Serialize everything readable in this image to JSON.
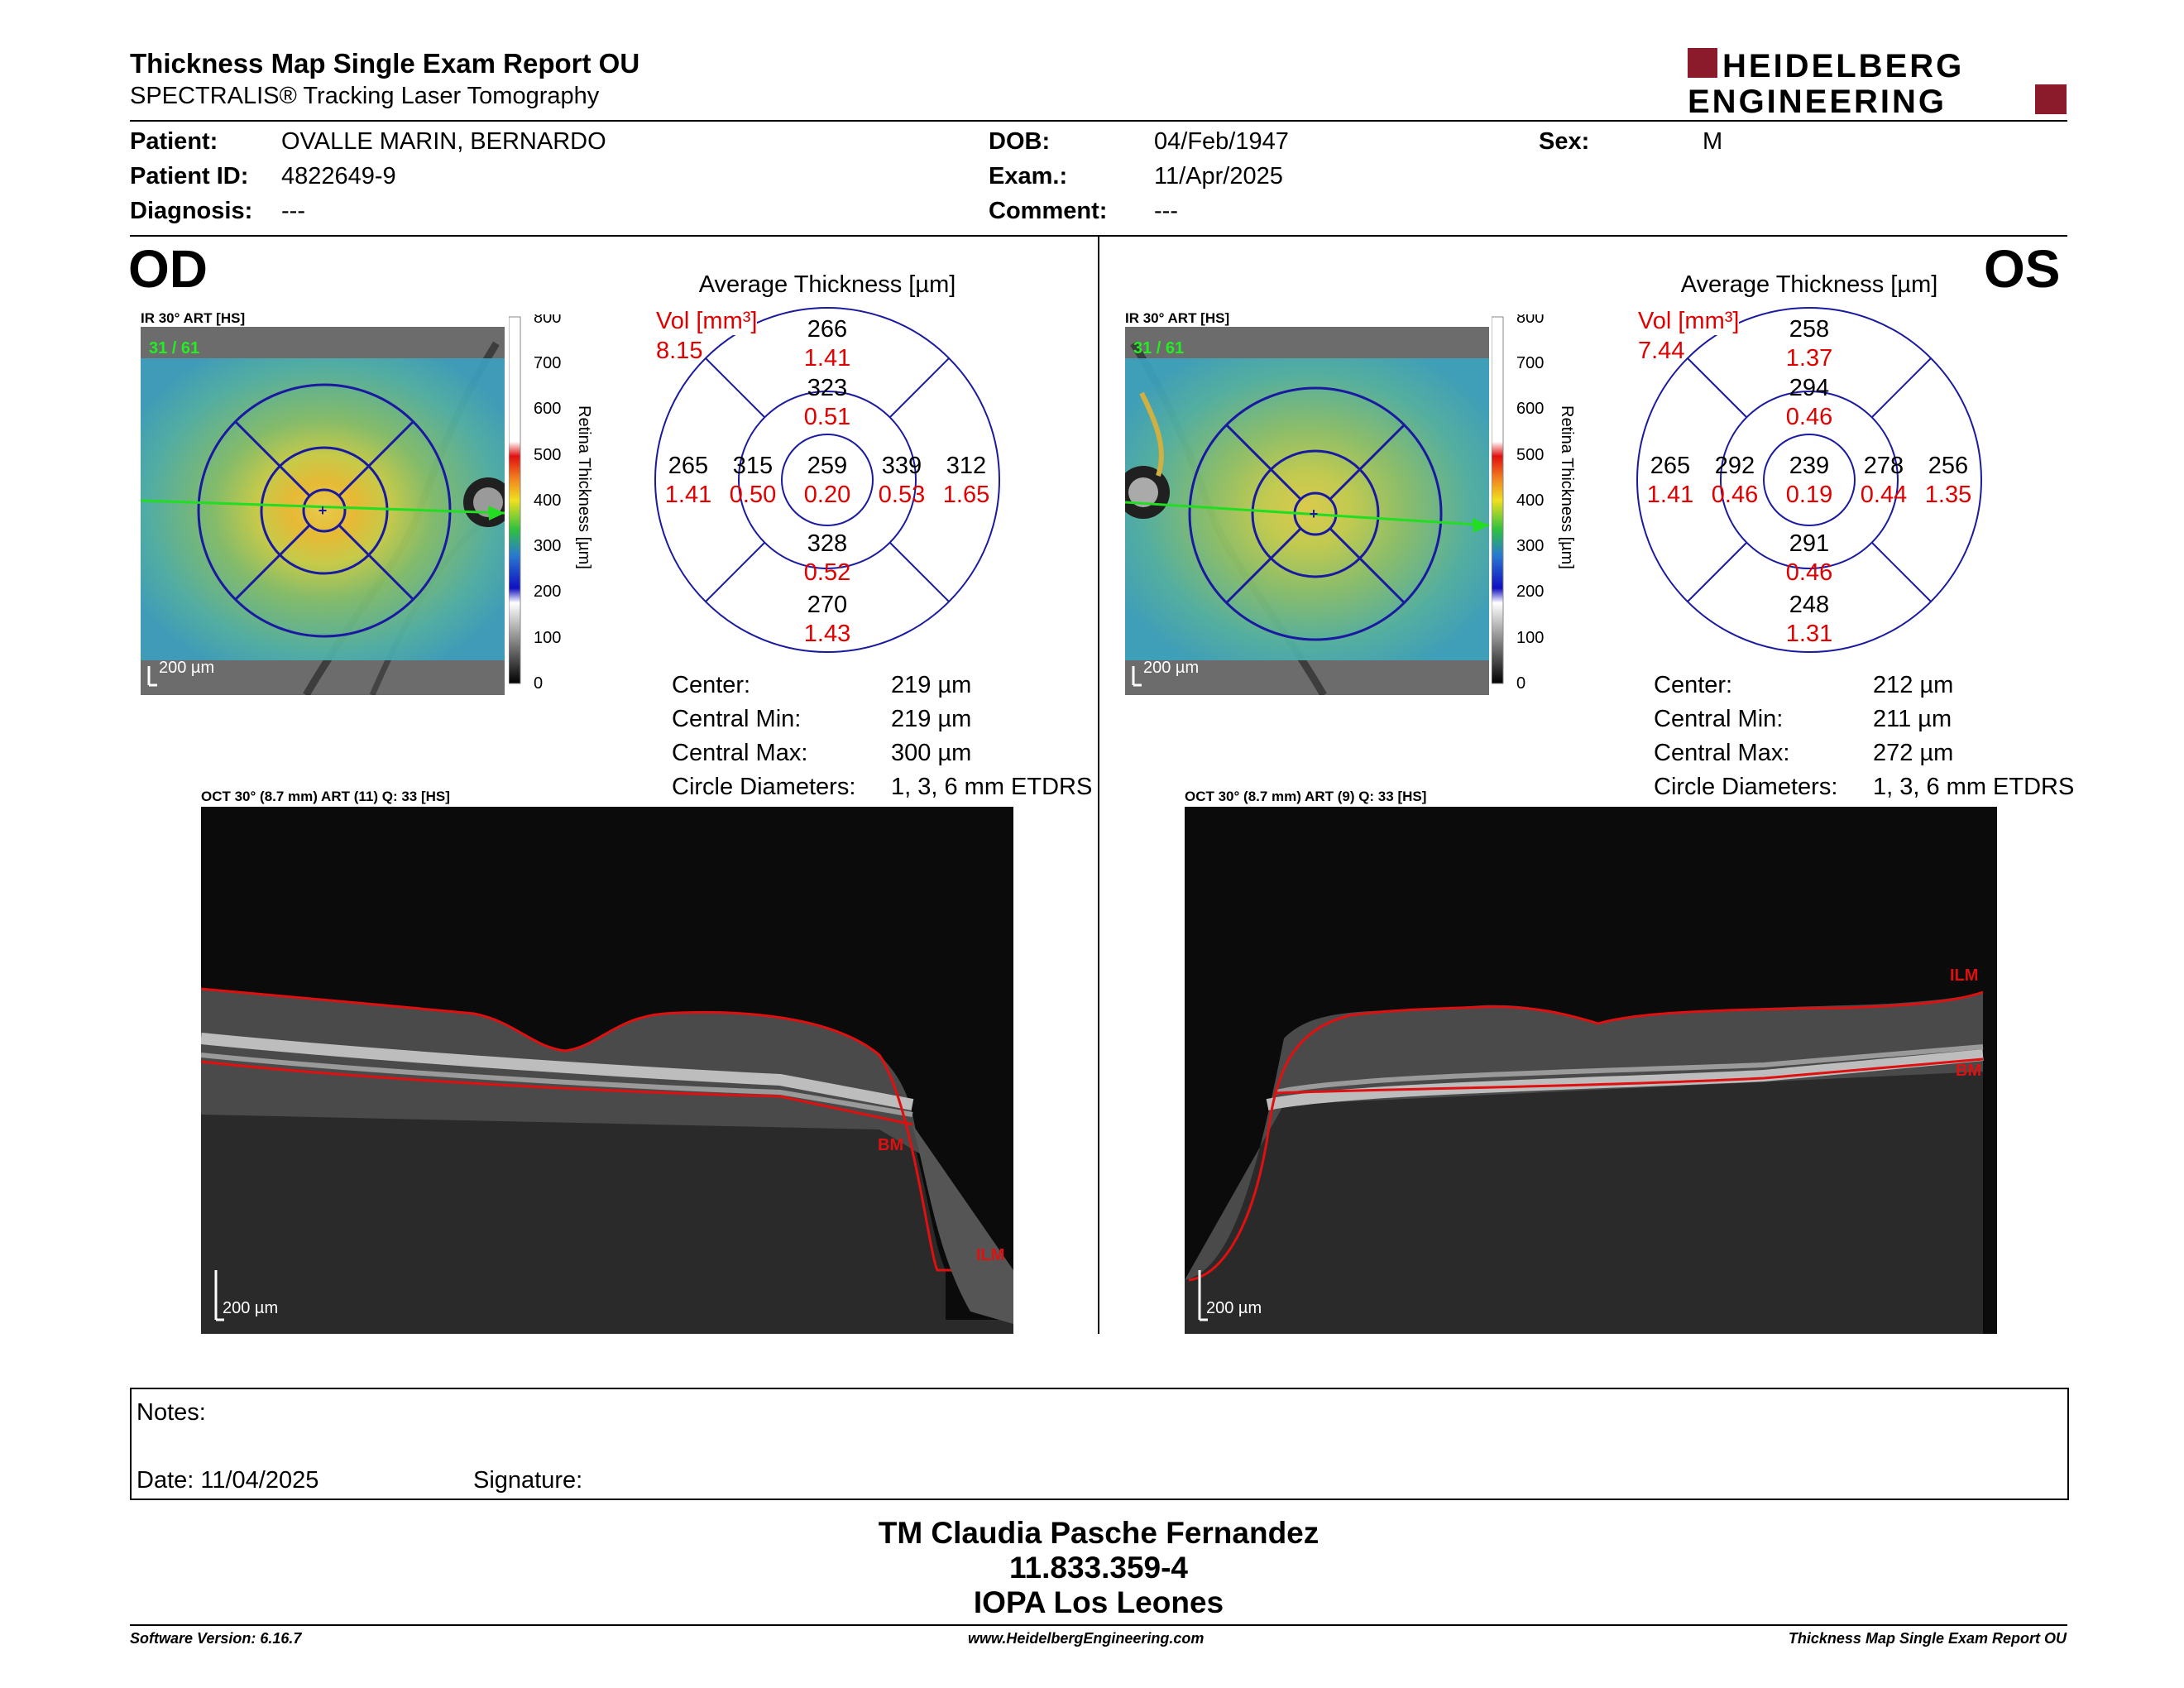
{
  "header": {
    "title": "Thickness Map Single Exam Report OU",
    "subtitle": "SPECTRALIS® Tracking Laser Tomography",
    "logo_line1": "HEIDELBERG",
    "logo_line2": "ENGINEERING"
  },
  "patient": {
    "patient_label": "Patient:",
    "patient_value": "OVALLE MARIN, BERNARDO",
    "id_label": "Patient ID:",
    "id_value": "4822649-9",
    "diag_label": "Diagnosis:",
    "diag_value": "---",
    "dob_label": "DOB:",
    "dob_value": "04/Feb/1947",
    "exam_label": "Exam.:",
    "exam_value": "11/Apr/2025",
    "comment_label": "Comment:",
    "comment_value": "---",
    "sex_label": "Sex:",
    "sex_value": "M"
  },
  "od": {
    "eye": "OD",
    "ir_caption": "IR 30° ART [HS]",
    "ir_art": "31 / 61",
    "scale_bar": "200 µm",
    "avg_title": "Average Thickness [µm]",
    "vol_label": "Vol [mm³]",
    "vol_total": "8.15",
    "grid": {
      "center": [
        "259",
        "0.20"
      ],
      "inner_sup": [
        "323",
        "0.51"
      ],
      "inner_inf": [
        "328",
        "0.52"
      ],
      "inner_temp": [
        "315",
        "0.50"
      ],
      "inner_nas": [
        "339",
        "0.53"
      ],
      "outer_sup": [
        "266",
        "1.41"
      ],
      "outer_inf": [
        "270",
        "1.43"
      ],
      "outer_temp": [
        "265",
        "1.41"
      ],
      "outer_nas": [
        "312",
        "1.65"
      ]
    },
    "stats": {
      "center_label": "Center:",
      "center_value": "219 µm",
      "min_label": "Central Min:",
      "min_value": "219 µm",
      "max_label": "Central Max:",
      "max_value": "300 µm",
      "circ_label": "Circle Diameters:",
      "circ_value": "1, 3, 6 mm ETDRS"
    },
    "oct_caption": "OCT 30° (8.7 mm) ART (11) Q: 33 [HS]",
    "oct_scale": "200 µm",
    "ilm": "ILM",
    "bm": "BM"
  },
  "os": {
    "eye": "OS",
    "ir_caption": "IR 30° ART [HS]",
    "ir_art": "31 / 61",
    "scale_bar": "200 µm",
    "avg_title": "Average Thickness [µm]",
    "vol_label": "Vol [mm³]",
    "vol_total": "7.44",
    "grid": {
      "center": [
        "239",
        "0.19"
      ],
      "inner_sup": [
        "294",
        "0.46"
      ],
      "inner_inf": [
        "291",
        "0.46"
      ],
      "inner_temp": [
        "292",
        "0.46"
      ],
      "inner_nas": [
        "278",
        "0.44"
      ],
      "outer_sup": [
        "258",
        "1.37"
      ],
      "outer_inf": [
        "248",
        "1.31"
      ],
      "outer_temp": [
        "265",
        "1.41"
      ],
      "outer_nas": [
        "256",
        "1.35"
      ]
    },
    "stats": {
      "center_label": "Center:",
      "center_value": "212 µm",
      "min_label": "Central Min:",
      "min_value": "211 µm",
      "max_label": "Central Max:",
      "max_value": "272 µm",
      "circ_label": "Circle Diameters:",
      "circ_value": "1, 3, 6 mm ETDRS"
    },
    "oct_caption": "OCT 30° (8.7 mm) ART (9) Q: 33 [HS]",
    "oct_scale": "200 µm",
    "ilm": "ILM",
    "bm": "BM"
  },
  "colorscale": {
    "title": "Retina Thickness [µm]",
    "ticks": [
      "800",
      "700",
      "600",
      "500",
      "400",
      "300",
      "200",
      "100",
      "0"
    ]
  },
  "notes": {
    "notes_label": "Notes:",
    "date_label": "Date: 11/04/2025",
    "signature_label": "Signature:"
  },
  "signoff": {
    "name": "TM Claudia Pasche Fernandez",
    "rut": "11.833.359-4",
    "place": "IOPA Los Leones"
  },
  "footer": {
    "software": "Software Version: 6.16.7",
    "website": "www.HeidelbergEngineering.com",
    "report": "Thickness Map Single Exam Report OU"
  },
  "colors": {
    "brand": "#8b1a2b",
    "vol_red": "#e00000",
    "ring_blue": "#1a1aa0"
  }
}
